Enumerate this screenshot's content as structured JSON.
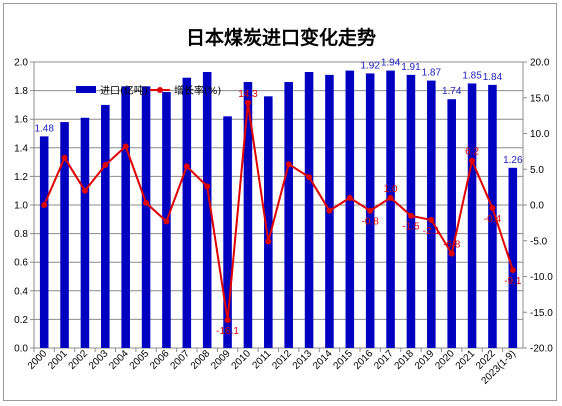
{
  "chart_data": {
    "type": "bar",
    "title": "日本煤炭进口变化走势",
    "categories": [
      "2000",
      "2001",
      "2002",
      "2003",
      "2004",
      "2005",
      "2006",
      "2007",
      "2008",
      "2009",
      "2010",
      "2011",
      "2012",
      "2013",
      "2014",
      "2015",
      "2016",
      "2017",
      "2018",
      "2019",
      "2020",
      "2021",
      "2022",
      "2023(1-9)"
    ],
    "series": [
      {
        "name": "进口(亿吨)",
        "type": "bar",
        "axis": "left",
        "values": [
          1.48,
          1.58,
          1.61,
          1.7,
          1.83,
          1.83,
          1.79,
          1.89,
          1.93,
          1.62,
          1.86,
          1.76,
          1.86,
          1.93,
          1.91,
          1.94,
          1.92,
          1.94,
          1.91,
          1.87,
          1.74,
          1.85,
          1.84,
          1.26
        ],
        "labels": [
          "1.48",
          "",
          "",
          "",
          "",
          "",
          "",
          "",
          "",
          "",
          "",
          "",
          "",
          "",
          "",
          "",
          "1.92",
          "1.94",
          "1.91",
          "1.87",
          "1.74",
          "1.85",
          "1.84",
          "1.26"
        ]
      },
      {
        "name": "增长率(%)",
        "type": "line",
        "axis": "right",
        "values": [
          0,
          6.6,
          2.0,
          5.6,
          8.2,
          0.3,
          -2.3,
          5.4,
          2.6,
          -16.1,
          14.3,
          -5.1,
          5.7,
          3.9,
          -0.8,
          1.0,
          -0.8,
          1.0,
          -1.5,
          -2.1,
          -6.8,
          6.2,
          -0.4,
          -9.1
        ],
        "labels": [
          "",
          "",
          "",
          "",
          "",
          "",
          "",
          "",
          "",
          "-16.1",
          "14.3",
          "",
          "",
          "",
          "",
          "",
          "-0.8",
          "1.0",
          "-1.5",
          "-2.1",
          "-6.8",
          "6.2",
          "-0.4",
          "-9.1"
        ]
      }
    ],
    "ylim": [
      0,
      2.0
    ],
    "yticks": [
      "0.0",
      "0.2",
      "0.4",
      "0.6",
      "0.8",
      "1.0",
      "1.2",
      "1.4",
      "1.6",
      "1.8",
      "2.0"
    ],
    "y2lim": [
      -20,
      20
    ],
    "y2ticks": [
      "-20.0",
      "-15.0",
      "-10.0",
      "-5.0",
      "0.0",
      "5.0",
      "10.0",
      "15.0",
      "20.0"
    ],
    "legend": "top-left",
    "grid": true,
    "colors": {
      "bar": "#0000c0",
      "line": "#e00000",
      "bar_label": "#2020c0"
    }
  }
}
